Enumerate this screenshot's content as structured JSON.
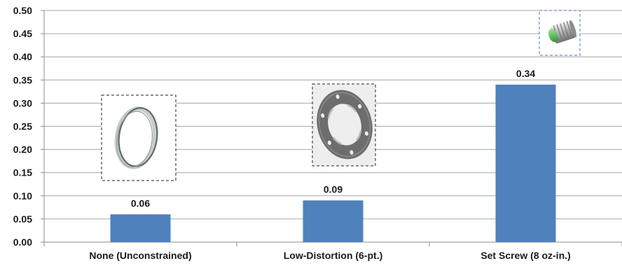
{
  "chart_data": {
    "type": "bar",
    "title": "",
    "xlabel": "",
    "ylabel": "",
    "categories": [
      "None (Unconstrained)",
      "Low-Distortion (6-pt.)",
      "Set Screw (8 oz-in.)"
    ],
    "values": [
      0.06,
      0.09,
      0.34
    ],
    "value_labels": [
      "0.06",
      "0.09",
      "0.34"
    ],
    "ylim": [
      0,
      0.5
    ],
    "yticks": [
      "0.00",
      "0.05",
      "0.10",
      "0.15",
      "0.20",
      "0.25",
      "0.30",
      "0.35",
      "0.40",
      "0.45",
      "0.50"
    ],
    "grid": true,
    "legend": "none",
    "bar_color": "#4f81bd",
    "grid_color": "#a6a6a6",
    "illustrations": [
      "o-ring-icon",
      "low-distortion-ring-icon",
      "set-screw-icon"
    ]
  }
}
